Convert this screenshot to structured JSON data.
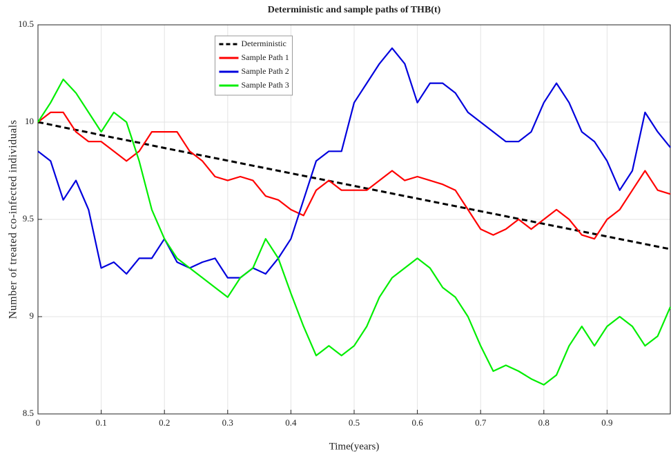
{
  "chart_data": {
    "type": "line",
    "title": "Deterministic and sample paths of THB(t)",
    "xlabel": "Time(years)",
    "ylabel": "Number of treated co-infected individuals",
    "xlim": [
      0,
      1
    ],
    "ylim": [
      8.5,
      10.5
    ],
    "xticks": [
      0,
      0.1,
      0.2,
      0.3,
      0.4,
      0.5,
      0.6,
      0.7,
      0.8,
      0.9
    ],
    "yticks": [
      8.5,
      9,
      9.5,
      10,
      10.5
    ],
    "grid": true,
    "legend": "top",
    "x": [
      0,
      0.02,
      0.04,
      0.06,
      0.08,
      0.1,
      0.12,
      0.14,
      0.16,
      0.18,
      0.2,
      0.22,
      0.24,
      0.26,
      0.28,
      0.3,
      0.32,
      0.34,
      0.36,
      0.38,
      0.4,
      0.42,
      0.44,
      0.46,
      0.48,
      0.5,
      0.52,
      0.54,
      0.56,
      0.58,
      0.6,
      0.62,
      0.64,
      0.66,
      0.68,
      0.7,
      0.72,
      0.74,
      0.76,
      0.78,
      0.8,
      0.82,
      0.84,
      0.86,
      0.88,
      0.9,
      0.92,
      0.94,
      0.96,
      0.98,
      1
    ],
    "series": [
      {
        "name": "Deterministic",
        "color": "#000000",
        "style": "dashed",
        "values": [
          10,
          9.987,
          9.973,
          9.96,
          9.947,
          9.933,
          9.92,
          9.907,
          9.894,
          9.88,
          9.867,
          9.854,
          9.841,
          9.828,
          9.815,
          9.802,
          9.789,
          9.776,
          9.763,
          9.75,
          9.737,
          9.724,
          9.711,
          9.698,
          9.685,
          9.672,
          9.659,
          9.646,
          9.633,
          9.62,
          9.607,
          9.594,
          9.581,
          9.568,
          9.555,
          9.542,
          9.529,
          9.516,
          9.503,
          9.49,
          9.477,
          9.464,
          9.451,
          9.438,
          9.425,
          9.412,
          9.399,
          9.386,
          9.373,
          9.36,
          9.347
        ]
      },
      {
        "name": "Sample Path 1",
        "color": "#ff0000",
        "style": "solid",
        "values": [
          10.0,
          10.05,
          10.05,
          9.95,
          9.9,
          9.9,
          9.85,
          9.8,
          9.85,
          9.95,
          9.95,
          9.95,
          9.85,
          9.8,
          9.72,
          9.7,
          9.72,
          9.7,
          9.62,
          9.6,
          9.55,
          9.52,
          9.65,
          9.7,
          9.65,
          9.65,
          9.65,
          9.7,
          9.75,
          9.7,
          9.72,
          9.7,
          9.68,
          9.65,
          9.55,
          9.45,
          9.42,
          9.45,
          9.5,
          9.45,
          9.5,
          9.55,
          9.5,
          9.42,
          9.4,
          9.5,
          9.55,
          9.65,
          9.75,
          9.65,
          9.63
        ]
      },
      {
        "name": "Sample Path 2",
        "color": "#0000dd",
        "style": "solid",
        "values": [
          9.85,
          9.8,
          9.6,
          9.7,
          9.55,
          9.25,
          9.28,
          9.22,
          9.3,
          9.3,
          9.4,
          9.28,
          9.25,
          9.28,
          9.3,
          9.2,
          9.2,
          9.25,
          9.22,
          9.3,
          9.4,
          9.6,
          9.8,
          9.85,
          9.85,
          10.1,
          10.2,
          10.3,
          10.38,
          10.3,
          10.1,
          10.2,
          10.2,
          10.15,
          10.05,
          10.0,
          9.95,
          9.9,
          9.9,
          9.95,
          10.1,
          10.2,
          10.1,
          9.95,
          9.9,
          9.8,
          9.65,
          9.75,
          10.05,
          9.95,
          9.87
        ]
      },
      {
        "name": "Sample Path 3",
        "color": "#00ee00",
        "style": "solid",
        "values": [
          10.0,
          10.1,
          10.22,
          10.15,
          10.05,
          9.95,
          10.05,
          10.0,
          9.8,
          9.55,
          9.4,
          9.3,
          9.25,
          9.2,
          9.15,
          9.1,
          9.2,
          9.25,
          9.4,
          9.3,
          9.12,
          8.95,
          8.8,
          8.85,
          8.8,
          8.85,
          8.95,
          9.1,
          9.2,
          9.25,
          9.3,
          9.25,
          9.15,
          9.1,
          9.0,
          8.85,
          8.72,
          8.75,
          8.72,
          8.68,
          8.65,
          8.7,
          8.85,
          8.95,
          8.85,
          8.95,
          9.0,
          8.95,
          8.85,
          8.9,
          9.05
        ]
      }
    ]
  }
}
